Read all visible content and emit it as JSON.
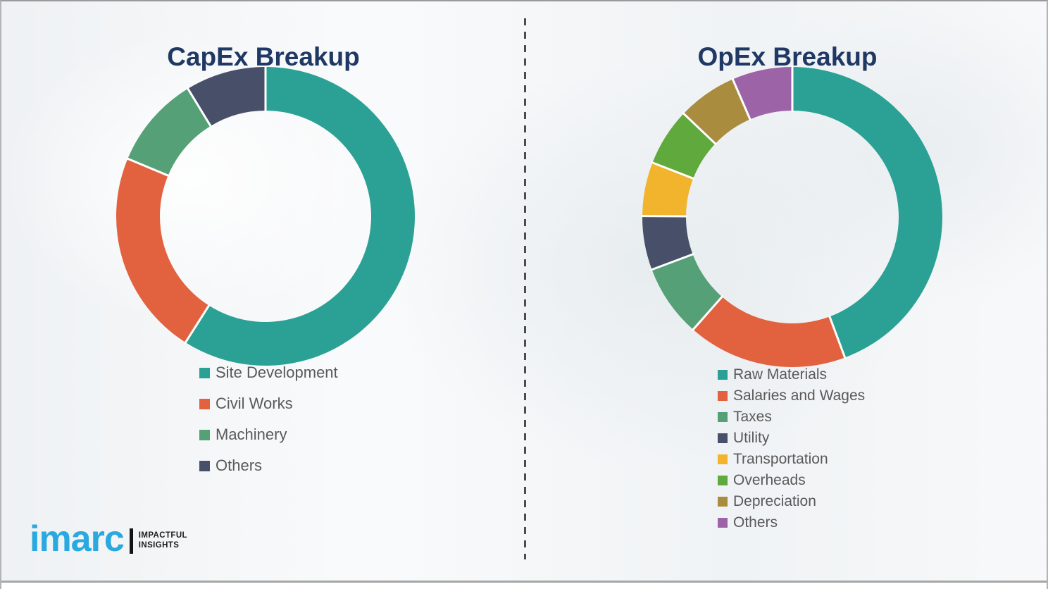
{
  "page": {
    "title_color": "#1f3864",
    "legend_text_color": "#595959",
    "background": "#f4f5f7",
    "divider_color": "#4c4c4c",
    "bottom_rule_color": "#a6a6a6"
  },
  "logo": {
    "brand": "imarc",
    "brand_color": "#29a9e0",
    "separator_color": "#141414",
    "tagline_line1": "IMPACTFUL",
    "tagline_line2": "INSIGHTS",
    "tagline_color": "#1c1c1c"
  },
  "chart_data": [
    {
      "type": "pie",
      "variant": "donut",
      "title": "CapEx Breakup",
      "start_angle_deg": 0,
      "direction": "clockwise",
      "legend_position": "below-left",
      "gap_color": "#ffffff",
      "slices": [
        {
          "label": "Site Development",
          "value_pct": 59.0,
          "color": "#2aa194"
        },
        {
          "label": "Civil Works",
          "value_pct": 22.3,
          "color": "#e2613f"
        },
        {
          "label": "Machinery",
          "value_pct": 10.0,
          "color": "#55a076"
        },
        {
          "label": "Others",
          "value_pct": 8.7,
          "color": "#475068"
        }
      ]
    },
    {
      "type": "pie",
      "variant": "donut",
      "title": "OpEx Breakup",
      "start_angle_deg": 0,
      "direction": "clockwise",
      "legend_position": "below-left",
      "gap_color": "#ffffff",
      "slices": [
        {
          "label": "Raw Materials",
          "value_pct": 44.3,
          "color": "#2aa194"
        },
        {
          "label": "Salaries and Wages",
          "value_pct": 17.2,
          "color": "#e2613f"
        },
        {
          "label": "Taxes",
          "value_pct": 7.8,
          "color": "#55a076"
        },
        {
          "label": "Utility",
          "value_pct": 5.8,
          "color": "#475068"
        },
        {
          "label": "Transportation",
          "value_pct": 5.8,
          "color": "#f2b42c"
        },
        {
          "label": "Overheads",
          "value_pct": 6.2,
          "color": "#60a93c"
        },
        {
          "label": "Depreciation",
          "value_pct": 6.4,
          "color": "#a98c3e"
        },
        {
          "label": "Others",
          "value_pct": 6.5,
          "color": "#9c64a6"
        }
      ]
    }
  ]
}
